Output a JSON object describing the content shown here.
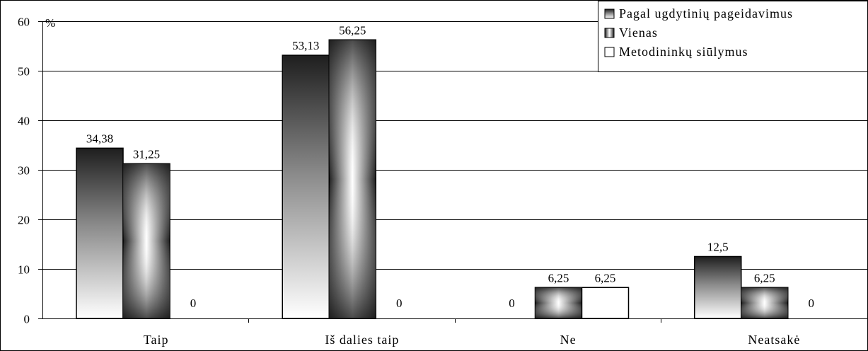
{
  "chart_data": {
    "type": "bar",
    "categories": [
      "Taip",
      "Iš dalies taip",
      "Ne",
      "Neatsakė"
    ],
    "series": [
      {
        "name": "Pagal ugdytinių pageidavimus",
        "values": [
          34.38,
          53.13,
          0,
          12.5
        ],
        "labels": [
          "34,38",
          "53,13",
          "0",
          "12,5"
        ],
        "color": "#2e2e2e"
      },
      {
        "name": "Vienas",
        "values": [
          31.25,
          56.25,
          6.25,
          6.25
        ],
        "labels": [
          "31,25",
          "56,25",
          "6,25",
          "6,25"
        ],
        "color": "#2e2e2e"
      },
      {
        "name": "Metodininkų siūlymus",
        "values": [
          0,
          0,
          6.25,
          0
        ],
        "labels": [
          "0",
          "0",
          "6,25",
          "0"
        ],
        "color": "#ffffff"
      }
    ],
    "ylabel": "%",
    "ylim": [
      0,
      60
    ],
    "yticks": [
      "0",
      "10",
      "20",
      "30",
      "40",
      "50",
      "60"
    ],
    "ytick_values": [
      0,
      10,
      20,
      30,
      40,
      50,
      60
    ],
    "grid": true,
    "legend_position": "top-right"
  }
}
